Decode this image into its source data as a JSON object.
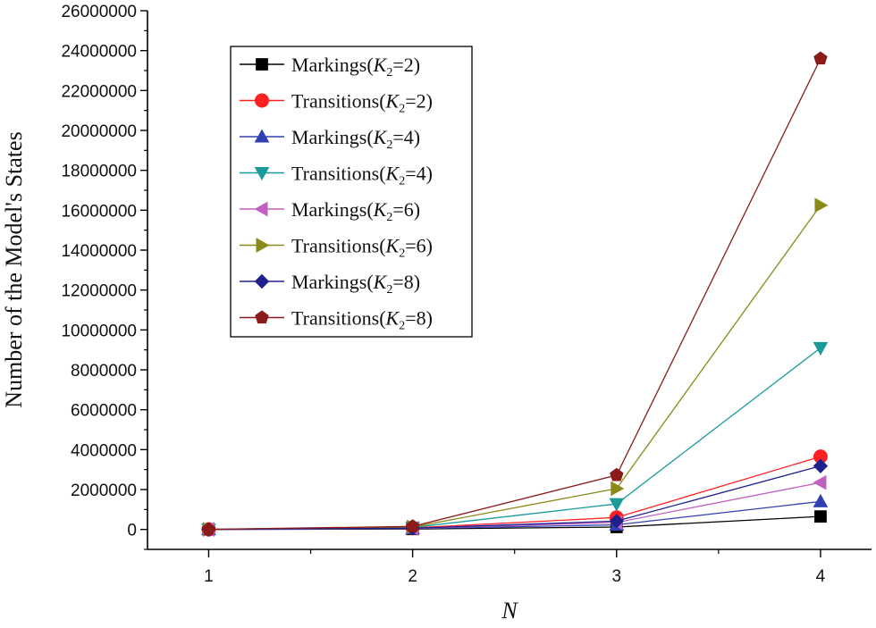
{
  "chart_data": {
    "type": "line",
    "title": "",
    "xlabel": "N",
    "ylabel": "Number of the Model's States",
    "x": [
      1,
      2,
      3,
      4
    ],
    "xlim": [
      0.7,
      4.25
    ],
    "ylim": [
      -1000000,
      26000000
    ],
    "x_ticks": [
      "1",
      "2",
      "3",
      "4"
    ],
    "y_ticks": [
      "0",
      "2000000",
      "4000000",
      "6000000",
      "8000000",
      "10000000",
      "12000000",
      "14000000",
      "16000000",
      "18000000",
      "20000000",
      "22000000",
      "24000000",
      "26000000"
    ],
    "grid": false,
    "legend_position": "top-left",
    "series": [
      {
        "name": "Markings(K2=2)",
        "legend": {
          "prefix": "Markings(",
          "var": "K",
          "sub": "2",
          "suffix": "=2)"
        },
        "color": "#000000",
        "marker": "square",
        "values": [
          400,
          20000,
          120000,
          650000
        ]
      },
      {
        "name": "Transitions(K2=2)",
        "legend": {
          "prefix": "Transitions(",
          "var": "K",
          "sub": "2",
          "suffix": "=2)"
        },
        "color": "#ff2020",
        "marker": "circle",
        "values": [
          1000,
          80000,
          600000,
          3650000
        ]
      },
      {
        "name": "Markings(K2=4)",
        "legend": {
          "prefix": "Markings(",
          "var": "K",
          "sub": "2",
          "suffix": "=4)"
        },
        "color": "#3040b0",
        "marker": "triangle-up",
        "values": [
          800,
          40000,
          230000,
          1400000
        ]
      },
      {
        "name": "Transitions(K2=4)",
        "legend": {
          "prefix": "Transitions(",
          "var": "K",
          "sub": "2",
          "suffix": "=4)"
        },
        "color": "#1b9a9a",
        "marker": "triangle-down",
        "values": [
          2000,
          100000,
          1280000,
          9100000
        ]
      },
      {
        "name": "Markings(K2=6)",
        "legend": {
          "prefix": "Markings(",
          "var": "K",
          "sub": "2",
          "suffix": "=6)"
        },
        "color": "#c060c0",
        "marker": "triangle-left",
        "values": [
          1200,
          50000,
          350000,
          2350000
        ]
      },
      {
        "name": "Transitions(K2=6)",
        "legend": {
          "prefix": "Transitions(",
          "var": "K",
          "sub": "2",
          "suffix": "=6)"
        },
        "color": "#8a8a1a",
        "marker": "triangle-right",
        "values": [
          3000,
          120000,
          2050000,
          16250000
        ]
      },
      {
        "name": "Markings(K2=8)",
        "legend": {
          "prefix": "Markings(",
          "var": "K",
          "sub": "2",
          "suffix": "=8)"
        },
        "color": "#20208c",
        "marker": "diamond",
        "values": [
          1500,
          60000,
          420000,
          3180000
        ]
      },
      {
        "name": "Transitions(K2=8)",
        "legend": {
          "prefix": "Transitions(",
          "var": "K",
          "sub": "2",
          "suffix": "=8)"
        },
        "color": "#8b1a1a",
        "marker": "pentagon",
        "values": [
          4000,
          150000,
          2720000,
          23600000
        ]
      }
    ]
  }
}
